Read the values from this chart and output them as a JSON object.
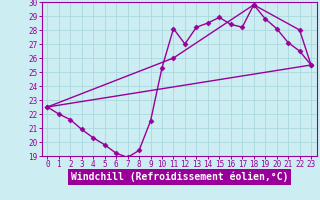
{
  "xlabel": "Windchill (Refroidissement éolien,°C)",
  "bg_color": "#cceef2",
  "grid_color": "#aad8de",
  "line_color": "#990099",
  "spine_color": "#990099",
  "xlim": [
    -0.5,
    23.5
  ],
  "ylim": [
    19,
    30
  ],
  "xticks": [
    0,
    1,
    2,
    3,
    4,
    5,
    6,
    7,
    8,
    9,
    10,
    11,
    12,
    13,
    14,
    15,
    16,
    17,
    18,
    19,
    20,
    21,
    22,
    23
  ],
  "yticks": [
    19,
    20,
    21,
    22,
    23,
    24,
    25,
    26,
    27,
    28,
    29,
    30
  ],
  "line1_x": [
    0,
    1,
    2,
    3,
    4,
    5,
    6,
    7,
    8,
    9,
    10,
    11,
    12,
    13,
    14,
    15,
    16,
    17,
    18,
    19,
    20,
    21,
    22,
    23
  ],
  "line1_y": [
    22.5,
    22.0,
    21.6,
    20.9,
    20.3,
    19.8,
    19.2,
    18.9,
    19.4,
    21.5,
    25.3,
    28.1,
    27.0,
    28.2,
    28.5,
    28.9,
    28.4,
    28.2,
    29.8,
    28.8,
    28.1,
    27.1,
    26.5,
    25.5
  ],
  "line2_x": [
    0,
    11,
    18,
    22,
    23
  ],
  "line2_y": [
    22.5,
    26.0,
    29.8,
    28.0,
    25.5
  ],
  "line3_x": [
    0,
    23
  ],
  "line3_y": [
    22.5,
    25.5
  ],
  "marker": "D",
  "markersize": 2.5,
  "linewidth": 1.0,
  "tick_fontsize": 5.5,
  "xlabel_fontsize": 7.0
}
